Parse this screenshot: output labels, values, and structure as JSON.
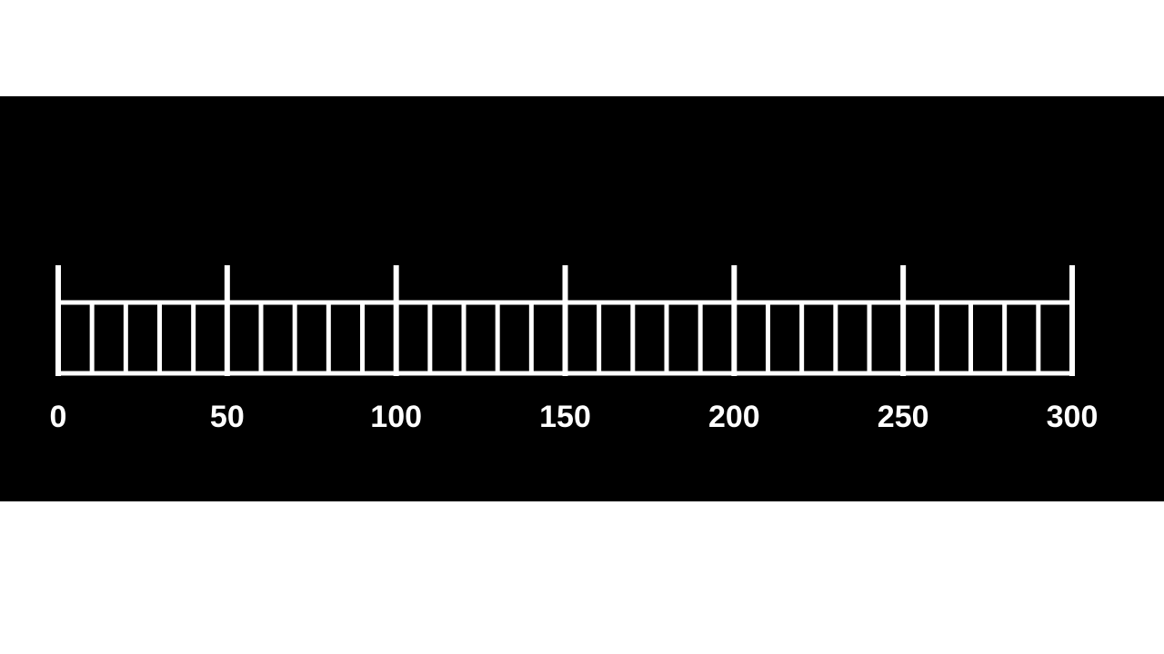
{
  "colors": {
    "page_background": "#ffffff",
    "panel_background": "#000000",
    "ruler_color": "#ffffff"
  },
  "scale": {
    "min": 0,
    "max": 300,
    "major_step": 50,
    "minor_step": 10,
    "labels": [
      "0",
      "50",
      "100",
      "150",
      "200",
      "250",
      "300"
    ]
  }
}
